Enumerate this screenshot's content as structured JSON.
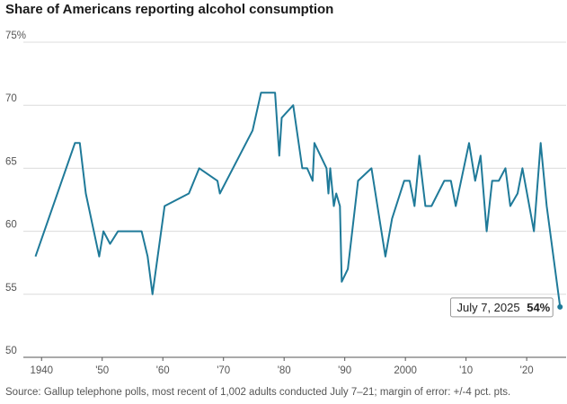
{
  "title": "Share of Americans reporting alcohol consumption",
  "source": "Source: Gallup telephone polls, most recent of 1,002 adults conducted July 7–21; margin of error: +/-4 pct. pts.",
  "chart_data": {
    "type": "line",
    "title": "Share of Americans reporting alcohol consumption",
    "xlabel": "",
    "ylabel": "",
    "xlim": [
      1937,
      2026.5
    ],
    "ylim": [
      50,
      75
    ],
    "y_ticks": [
      {
        "value": 75,
        "label": "75%"
      },
      {
        "value": 70,
        "label": "70"
      },
      {
        "value": 65,
        "label": "65"
      },
      {
        "value": 60,
        "label": "60"
      },
      {
        "value": 55,
        "label": "55"
      },
      {
        "value": 50,
        "label": "50"
      }
    ],
    "x_ticks": [
      {
        "value": 1940,
        "label": "1940"
      },
      {
        "value": 1950,
        "label": "'50"
      },
      {
        "value": 1960,
        "label": "'60"
      },
      {
        "value": 1970,
        "label": "'70"
      },
      {
        "value": 1980,
        "label": "'80"
      },
      {
        "value": 1990,
        "label": "'90"
      },
      {
        "value": 2000,
        "label": "2000"
      },
      {
        "value": 2010,
        "label": "'10"
      },
      {
        "value": 2020,
        "label": "'20"
      }
    ],
    "grid": "horizontal",
    "line_color": "#1f7a99",
    "series": [
      {
        "name": "",
        "points": [
          [
            1939,
            58
          ],
          [
            1945.5,
            67
          ],
          [
            1946.3,
            67
          ],
          [
            1947.3,
            63
          ],
          [
            1949.5,
            58
          ],
          [
            1950.2,
            60
          ],
          [
            1951.3,
            59
          ],
          [
            1952.6,
            60
          ],
          [
            1956.5,
            60
          ],
          [
            1957.5,
            58
          ],
          [
            1958.3,
            55
          ],
          [
            1960.3,
            62
          ],
          [
            1964.3,
            63
          ],
          [
            1966,
            65
          ],
          [
            1969,
            64
          ],
          [
            1969.4,
            63
          ],
          [
            1974.8,
            68
          ],
          [
            1976.2,
            71
          ],
          [
            1978.5,
            71
          ],
          [
            1979.2,
            66
          ],
          [
            1979.6,
            69
          ],
          [
            1981.5,
            70
          ],
          [
            1983,
            65
          ],
          [
            1983.8,
            65
          ],
          [
            1984.7,
            64
          ],
          [
            1985,
            67
          ],
          [
            1987,
            65
          ],
          [
            1987.3,
            63
          ],
          [
            1987.6,
            65
          ],
          [
            1988.2,
            62
          ],
          [
            1988.6,
            63
          ],
          [
            1989.2,
            62
          ],
          [
            1989.5,
            56
          ],
          [
            1990.5,
            57
          ],
          [
            1992.2,
            64
          ],
          [
            1994.4,
            65
          ],
          [
            1996.7,
            58
          ],
          [
            1997.8,
            61
          ],
          [
            1999.8,
            64
          ],
          [
            2000.7,
            64
          ],
          [
            2001.5,
            62
          ],
          [
            2002.3,
            66
          ],
          [
            2003.3,
            62
          ],
          [
            2004.3,
            62
          ],
          [
            2006.4,
            64
          ],
          [
            2007.5,
            64
          ],
          [
            2008.3,
            62
          ],
          [
            2010.5,
            67
          ],
          [
            2011.5,
            64
          ],
          [
            2012.4,
            66
          ],
          [
            2013.4,
            60
          ],
          [
            2014.3,
            64
          ],
          [
            2015.4,
            64
          ],
          [
            2016.5,
            65
          ],
          [
            2017.3,
            62
          ],
          [
            2018.5,
            63
          ],
          [
            2019.3,
            65
          ],
          [
            2021.2,
            60
          ],
          [
            2022.3,
            67
          ],
          [
            2023.3,
            62
          ],
          [
            2025.5,
            54
          ]
        ]
      }
    ],
    "annotation": {
      "label": "July 7, 2025",
      "value_label": "54%",
      "x": 2025.5,
      "y": 54
    }
  }
}
